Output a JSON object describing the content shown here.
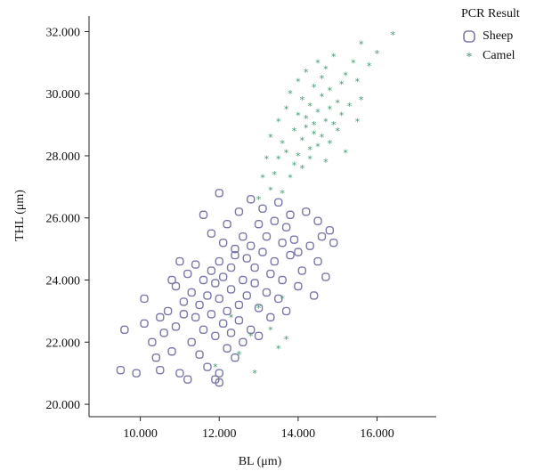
{
  "chart_data": {
    "type": "scatter",
    "xlabel": "BL (μm)",
    "ylabel": "THL (μm)",
    "xlim": [
      8.7,
      17.5
    ],
    "ylim": [
      19.6,
      32.5
    ],
    "xticks": [
      "10.000",
      "12.000",
      "14.000",
      "16.000"
    ],
    "xtick_values": [
      10,
      12,
      14,
      16
    ],
    "yticks": [
      "20.000",
      "22.000",
      "24.000",
      "26.000",
      "28.000",
      "30.000",
      "32.000"
    ],
    "ytick_values": [
      20,
      22,
      24,
      26,
      28,
      30,
      32
    ],
    "grid": false,
    "legend": {
      "title": "PCR Result",
      "placement": "top-right"
    },
    "series": [
      {
        "name": "Sheep",
        "marker": "circle",
        "color": "#7b78a8",
        "points": [
          [
            9.6,
            22.4
          ],
          [
            9.5,
            21.1
          ],
          [
            9.9,
            21.0
          ],
          [
            10.1,
            23.4
          ],
          [
            10.1,
            22.6
          ],
          [
            10.3,
            22.0
          ],
          [
            10.4,
            21.5
          ],
          [
            10.5,
            22.8
          ],
          [
            10.5,
            21.1
          ],
          [
            10.6,
            22.3
          ],
          [
            10.7,
            23.0
          ],
          [
            10.8,
            21.7
          ],
          [
            10.8,
            24.0
          ],
          [
            10.9,
            22.5
          ],
          [
            10.9,
            23.8
          ],
          [
            11.0,
            21.0
          ],
          [
            11.0,
            24.6
          ],
          [
            11.1,
            22.9
          ],
          [
            11.1,
            23.3
          ],
          [
            11.2,
            20.8
          ],
          [
            11.2,
            24.2
          ],
          [
            11.3,
            22.0
          ],
          [
            11.3,
            23.6
          ],
          [
            11.4,
            22.8
          ],
          [
            11.4,
            24.5
          ],
          [
            11.5,
            21.6
          ],
          [
            11.5,
            23.2
          ],
          [
            11.6,
            26.1
          ],
          [
            11.6,
            22.4
          ],
          [
            11.6,
            24.0
          ],
          [
            11.7,
            23.5
          ],
          [
            11.7,
            21.2
          ],
          [
            11.8,
            25.5
          ],
          [
            11.8,
            22.9
          ],
          [
            11.8,
            24.3
          ],
          [
            11.9,
            20.8
          ],
          [
            11.9,
            23.9
          ],
          [
            11.9,
            22.2
          ],
          [
            12.0,
            26.8
          ],
          [
            12.0,
            24.6
          ],
          [
            12.0,
            21.0
          ],
          [
            12.0,
            23.4
          ],
          [
            12.0,
            20.7
          ],
          [
            12.1,
            25.2
          ],
          [
            12.1,
            22.6
          ],
          [
            12.1,
            24.1
          ],
          [
            12.2,
            23.0
          ],
          [
            12.2,
            21.8
          ],
          [
            12.2,
            25.8
          ],
          [
            12.3,
            24.4
          ],
          [
            12.3,
            22.3
          ],
          [
            12.3,
            23.7
          ],
          [
            12.4,
            25.0
          ],
          [
            12.4,
            21.5
          ],
          [
            12.4,
            24.8
          ],
          [
            12.5,
            23.2
          ],
          [
            12.5,
            22.7
          ],
          [
            12.5,
            26.2
          ],
          [
            12.6,
            24.0
          ],
          [
            12.6,
            25.4
          ],
          [
            12.6,
            22.0
          ],
          [
            12.7,
            23.5
          ],
          [
            12.7,
            24.7
          ],
          [
            12.8,
            26.6
          ],
          [
            12.8,
            22.4
          ],
          [
            12.8,
            25.1
          ],
          [
            12.9,
            23.9
          ],
          [
            12.9,
            24.4
          ],
          [
            13.0,
            25.8
          ],
          [
            13.0,
            23.1
          ],
          [
            13.0,
            22.2
          ],
          [
            13.1,
            24.9
          ],
          [
            13.1,
            26.3
          ],
          [
            13.2,
            23.6
          ],
          [
            13.2,
            25.4
          ],
          [
            13.3,
            24.2
          ],
          [
            13.3,
            22.8
          ],
          [
            13.4,
            25.9
          ],
          [
            13.4,
            24.6
          ],
          [
            13.5,
            23.4
          ],
          [
            13.5,
            26.5
          ],
          [
            13.6,
            25.2
          ],
          [
            13.6,
            24.0
          ],
          [
            13.7,
            25.7
          ],
          [
            13.7,
            23.0
          ],
          [
            13.8,
            24.8
          ],
          [
            13.8,
            26.1
          ],
          [
            13.9,
            25.3
          ],
          [
            14.0,
            23.8
          ],
          [
            14.0,
            24.9
          ],
          [
            14.1,
            24.3
          ],
          [
            14.2,
            26.2
          ],
          [
            14.3,
            25.1
          ],
          [
            14.4,
            23.5
          ],
          [
            14.5,
            25.9
          ],
          [
            14.5,
            24.6
          ],
          [
            14.6,
            25.4
          ],
          [
            14.7,
            24.1
          ],
          [
            14.8,
            25.6
          ],
          [
            14.9,
            25.2
          ]
        ]
      },
      {
        "name": "Camel",
        "marker": "star",
        "color": "#3f9a6e",
        "points": [
          [
            11.9,
            21.2
          ],
          [
            12.3,
            22.8
          ],
          [
            12.5,
            21.6
          ],
          [
            12.8,
            22.2
          ],
          [
            12.9,
            21.0
          ],
          [
            13.0,
            23.1
          ],
          [
            13.3,
            22.4
          ],
          [
            13.5,
            21.8
          ],
          [
            13.6,
            23.4
          ],
          [
            13.7,
            22.1
          ],
          [
            13.0,
            26.6
          ],
          [
            13.1,
            27.3
          ],
          [
            13.2,
            27.9
          ],
          [
            13.3,
            26.9
          ],
          [
            13.3,
            28.6
          ],
          [
            13.4,
            27.4
          ],
          [
            13.5,
            29.1
          ],
          [
            13.5,
            27.9
          ],
          [
            13.6,
            28.4
          ],
          [
            13.6,
            26.8
          ],
          [
            13.7,
            29.5
          ],
          [
            13.7,
            28.1
          ],
          [
            13.8,
            27.3
          ],
          [
            13.8,
            30.0
          ],
          [
            13.9,
            28.8
          ],
          [
            13.9,
            27.7
          ],
          [
            14.0,
            29.3
          ],
          [
            14.0,
            28.0
          ],
          [
            14.0,
            30.4
          ],
          [
            14.1,
            28.5
          ],
          [
            14.1,
            29.8
          ],
          [
            14.1,
            27.6
          ],
          [
            14.2,
            28.9
          ],
          [
            14.2,
            30.7
          ],
          [
            14.2,
            29.2
          ],
          [
            14.3,
            28.2
          ],
          [
            14.3,
            29.6
          ],
          [
            14.3,
            27.9
          ],
          [
            14.4,
            30.2
          ],
          [
            14.4,
            28.7
          ],
          [
            14.4,
            29.0
          ],
          [
            14.5,
            31.0
          ],
          [
            14.5,
            29.4
          ],
          [
            14.5,
            28.3
          ],
          [
            14.6,
            29.9
          ],
          [
            14.6,
            28.6
          ],
          [
            14.6,
            30.5
          ],
          [
            14.7,
            29.1
          ],
          [
            14.7,
            27.8
          ],
          [
            14.7,
            30.8
          ],
          [
            14.8,
            29.5
          ],
          [
            14.8,
            28.4
          ],
          [
            14.8,
            30.1
          ],
          [
            14.9,
            29.0
          ],
          [
            14.9,
            31.2
          ],
          [
            15.0,
            29.7
          ],
          [
            15.0,
            28.8
          ],
          [
            15.1,
            30.3
          ],
          [
            15.1,
            29.3
          ],
          [
            15.2,
            28.1
          ],
          [
            15.2,
            30.6
          ],
          [
            15.3,
            29.6
          ],
          [
            15.4,
            31.0
          ],
          [
            15.5,
            29.1
          ],
          [
            15.5,
            30.4
          ],
          [
            15.6,
            31.6
          ],
          [
            15.6,
            29.8
          ],
          [
            15.8,
            30.9
          ],
          [
            16.0,
            31.3
          ],
          [
            16.4,
            31.9
          ]
        ]
      }
    ]
  }
}
